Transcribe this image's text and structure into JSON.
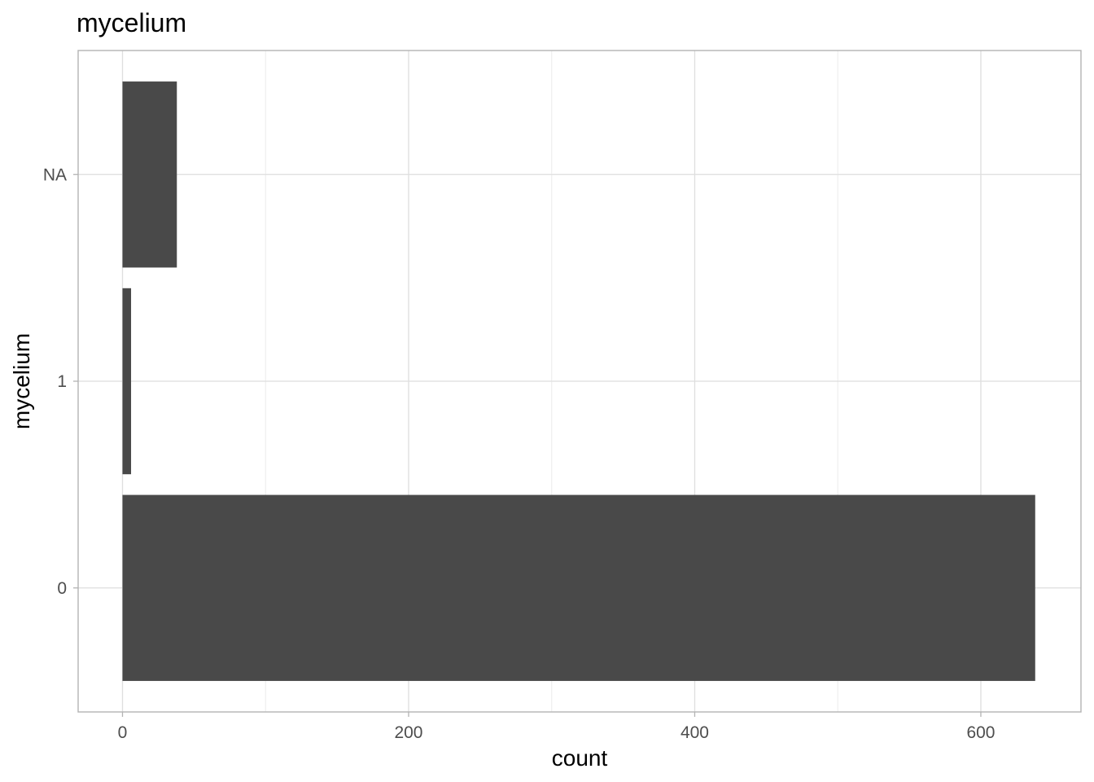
{
  "chart_data": {
    "type": "bar",
    "orientation": "horizontal",
    "title": "mycelium",
    "xlabel": "count",
    "ylabel": "mycelium",
    "categories": [
      "0",
      "1",
      "NA"
    ],
    "values": [
      638,
      6,
      38
    ],
    "xlim": [
      -31,
      670
    ],
    "x_ticks": [
      0,
      200,
      400,
      600
    ],
    "x_minor_ticks": [
      100,
      300,
      500
    ],
    "grid": true,
    "legend": "none",
    "colors": {
      "bar": "#494949",
      "grid_major": "#dedede",
      "grid_minor": "#ececec",
      "panel_border": "#b3b3b3",
      "tick_label": "#4d4d4d"
    }
  }
}
